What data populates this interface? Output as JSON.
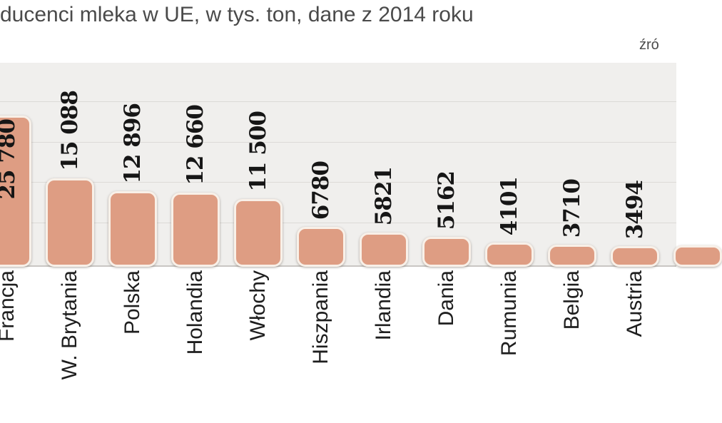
{
  "header": {
    "title": "ducenci mleka w UE, w tys. ton, dane z 2014 roku",
    "source": "źró"
  },
  "chart_data": {
    "type": "bar",
    "title": "ducenci mleka w UE, w tys. ton, dane z 2014 roku",
    "unit": "tys. ton",
    "year": "2014",
    "categories": [
      "Francja",
      "W. Brytania",
      "Polska",
      "Holandia",
      "Włochy",
      "Hiszpania",
      "Irlandia",
      "Dania",
      "Rumunia",
      "Belgia",
      "Austria"
    ],
    "values": [
      25780,
      15088,
      12896,
      12660,
      11500,
      6780,
      5821,
      5162,
      4101,
      3710,
      3494
    ],
    "value_labels": [
      "25 780",
      "15 088",
      "12 896",
      "12 660",
      "11 500",
      "6780",
      "5821",
      "5162",
      "4101",
      "3710",
      "3494"
    ],
    "ylim": [
      0,
      34800
    ],
    "grid": "horizontal",
    "legend": "none",
    "label_rotation": "vertical-bottom-to-top",
    "clipped_edges": {
      "left": "first bar (Francja) partially cut by image edge; title word also cut",
      "right": "one additional unlabeled bar partially visible; source note cut"
    },
    "colors": {
      "bar_fill": "#de9d83",
      "bar_border": "#f8f0e8",
      "plot_background": "#f0efed",
      "gridline": "#dcdad7",
      "baseline": "#c9c6c3",
      "value_label": "#161616",
      "category_label": "#1e1e1e",
      "title_text": "#4a4a4a",
      "source_text": "#4a4a4a",
      "page_background": "#ffffff"
    }
  }
}
